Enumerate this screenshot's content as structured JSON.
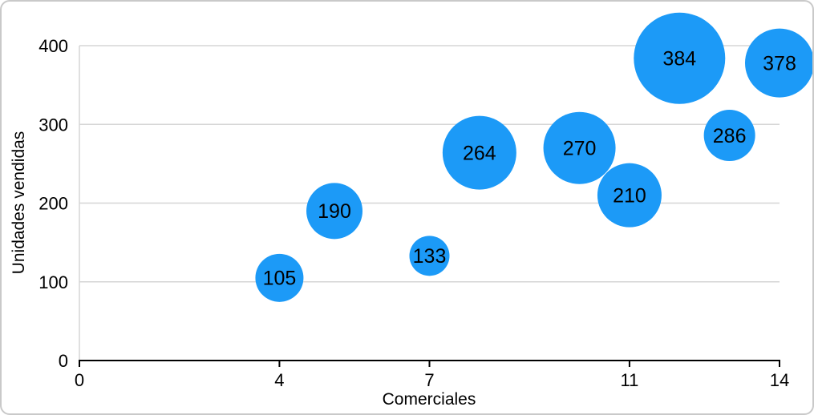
{
  "figure": {
    "background": "#ffffff",
    "border_color": "#c9c9c9"
  },
  "chart_data": {
    "type": "bubble",
    "title": "",
    "xlabel": "Comerciales",
    "ylabel": "Unidades vendidas",
    "xlim": [
      0,
      14
    ],
    "ylim": [
      0,
      400
    ],
    "x_ticks": [
      0,
      4,
      7,
      11,
      14
    ],
    "y_ticks": [
      0,
      100,
      200,
      300,
      400
    ],
    "grid": "horizontal",
    "legend": "none",
    "bubble_color": "#1c9af7",
    "gridline_color": "#d6d6d6",
    "axis_line_color": "#000000",
    "points": [
      {
        "x": 4,
        "y": 105,
        "label": "105",
        "r": 30
      },
      {
        "x": 5.1,
        "y": 190,
        "label": "190",
        "r": 35
      },
      {
        "x": 7,
        "y": 133,
        "label": "133",
        "r": 25
      },
      {
        "x": 8,
        "y": 264,
        "label": "264",
        "r": 46
      },
      {
        "x": 10,
        "y": 270,
        "label": "270",
        "r": 45
      },
      {
        "x": 11,
        "y": 210,
        "label": "210",
        "r": 40
      },
      {
        "x": 12,
        "y": 384,
        "label": "384",
        "r": 57
      },
      {
        "x": 13,
        "y": 286,
        "label": "286",
        "r": 32
      },
      {
        "x": 14,
        "y": 378,
        "label": "378",
        "r": 43
      }
    ]
  }
}
